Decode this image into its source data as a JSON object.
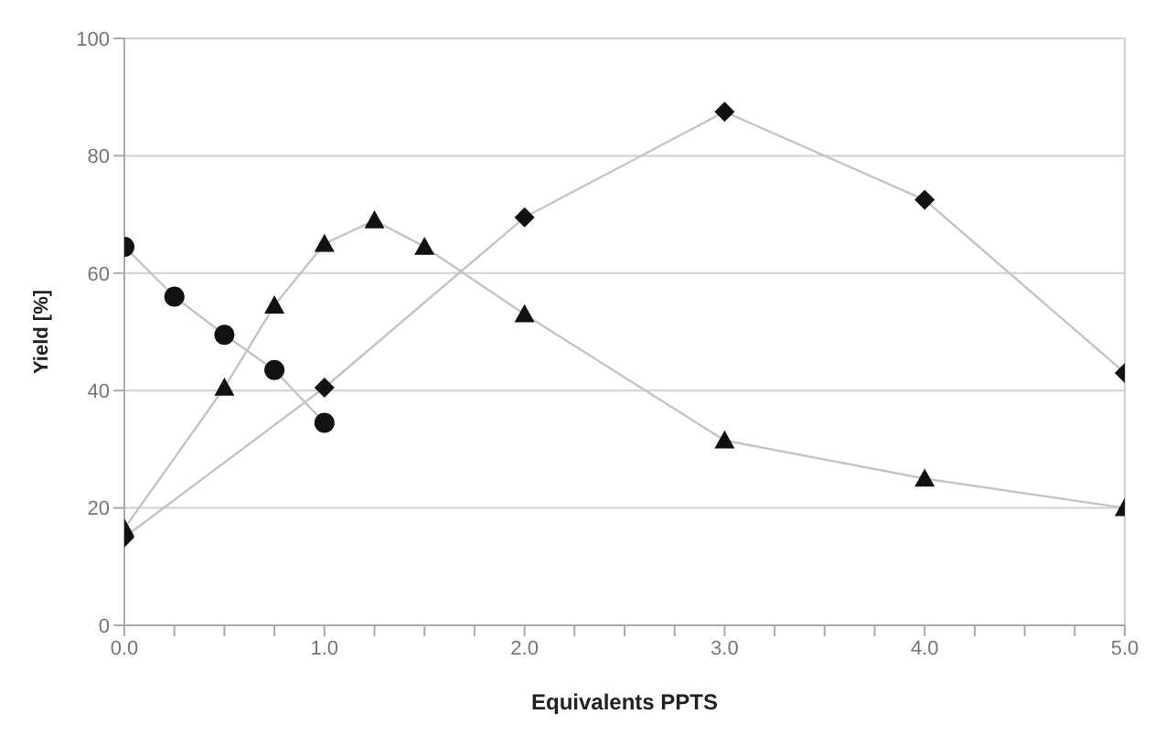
{
  "chart_data": {
    "type": "line",
    "xlabel": "Equivalents PPTS",
    "ylabel": "Yield [%]",
    "series": [
      {
        "color": "#111111",
        "marker": "circle",
        "x": [
          0,
          0.25,
          0.5,
          0.75,
          1.0
        ],
        "values": [
          64.5,
          56,
          49.5,
          43.5,
          34.5
        ]
      },
      {
        "color": "#111111",
        "marker": "diamond",
        "x": [
          0,
          1,
          2,
          3,
          4,
          5
        ],
        "values": [
          15,
          40.5,
          69.5,
          87.5,
          72.5,
          43
        ]
      },
      {
        "color": "#111111",
        "marker": "triangle",
        "x": [
          0,
          0.5,
          0.75,
          1,
          1.25,
          1.5,
          2,
          3,
          4,
          5
        ],
        "values": [
          16.5,
          40.5,
          54.5,
          65,
          69,
          64.5,
          53,
          31.5,
          25,
          20
        ]
      }
    ],
    "xlim": [
      0,
      5
    ],
    "xticks": [
      {
        "value": 0,
        "label": "0.0"
      },
      {
        "value": 0.25,
        "label": null
      },
      {
        "value": 0.5,
        "label": null
      },
      {
        "value": 0.75,
        "label": null
      },
      {
        "value": 1,
        "label": "1.0"
      },
      {
        "value": 1.25,
        "label": null
      },
      {
        "value": 1.5,
        "label": null
      },
      {
        "value": 1.75,
        "label": null
      },
      {
        "value": 2,
        "label": "2.0"
      },
      {
        "value": 2.25,
        "label": null
      },
      {
        "value": 2.5,
        "label": null
      },
      {
        "value": 2.75,
        "label": null
      },
      {
        "value": 3,
        "label": "3.0"
      },
      {
        "value": 3.25,
        "label": null
      },
      {
        "value": 3.5,
        "label": null
      },
      {
        "value": 3.75,
        "label": null
      },
      {
        "value": 4,
        "label": "4.0"
      },
      {
        "value": 4.25,
        "label": null
      },
      {
        "value": 4.5,
        "label": null
      },
      {
        "value": 4.75,
        "label": null
      },
      {
        "value": 5,
        "label": "5.0"
      }
    ],
    "ylim": [
      0,
      100
    ],
    "yticks": [
      0,
      20,
      40,
      60,
      80,
      100
    ],
    "grid": "y",
    "legend": false
  }
}
